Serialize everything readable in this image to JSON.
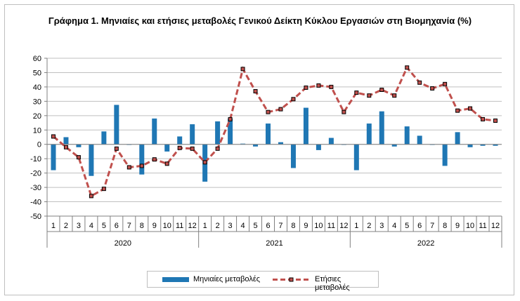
{
  "chart_data": {
    "type": "bar+line",
    "title": "Γράφημα 1. Μηνιαίες και ετήσιες μεταβολές  Γενικού Δείκτη Κύκλου Εργασιών στη Βιομηχανία (%)",
    "ylim": [
      -50,
      60
    ],
    "yticks": [
      60,
      50,
      40,
      30,
      20,
      10,
      0,
      -10,
      -20,
      -30,
      -40,
      -50
    ],
    "grid": true,
    "legend_position": "bottom-center",
    "years": [
      "2020",
      "2021",
      "2022"
    ],
    "months": [
      "1",
      "2",
      "3",
      "4",
      "5",
      "6",
      "7",
      "8",
      "9",
      "10",
      "11",
      "12"
    ],
    "series": [
      {
        "name": "Μηνιαίες μεταβολές",
        "type": "bar",
        "color": "#1f77b4",
        "values": [
          -18,
          5,
          -2,
          -22,
          9,
          27.5,
          0,
          -21,
          18,
          -5,
          5.5,
          14,
          -26,
          16,
          18,
          0.5,
          -1.5,
          14.5,
          1.5,
          -16.5,
          25.5,
          -4,
          4.5,
          0,
          -18,
          14.5,
          23,
          -1.5,
          12.5,
          6,
          0,
          -15,
          8.5,
          -2,
          -1,
          -1
        ]
      },
      {
        "name": "Ετήσιες μεταβολές",
        "type": "line",
        "color": "#c0504d",
        "values": [
          5.5,
          -2,
          -9,
          -36,
          -31,
          -3,
          -16,
          -15,
          -10.5,
          -13.5,
          -2.5,
          -3,
          -12.5,
          -3,
          17.5,
          52.5,
          37,
          22.5,
          24.5,
          31.5,
          39.5,
          41,
          40,
          22.5,
          36,
          34,
          38,
          34,
          53.5,
          43,
          39,
          42,
          23.5,
          25,
          17.5,
          16.5
        ]
      }
    ]
  }
}
